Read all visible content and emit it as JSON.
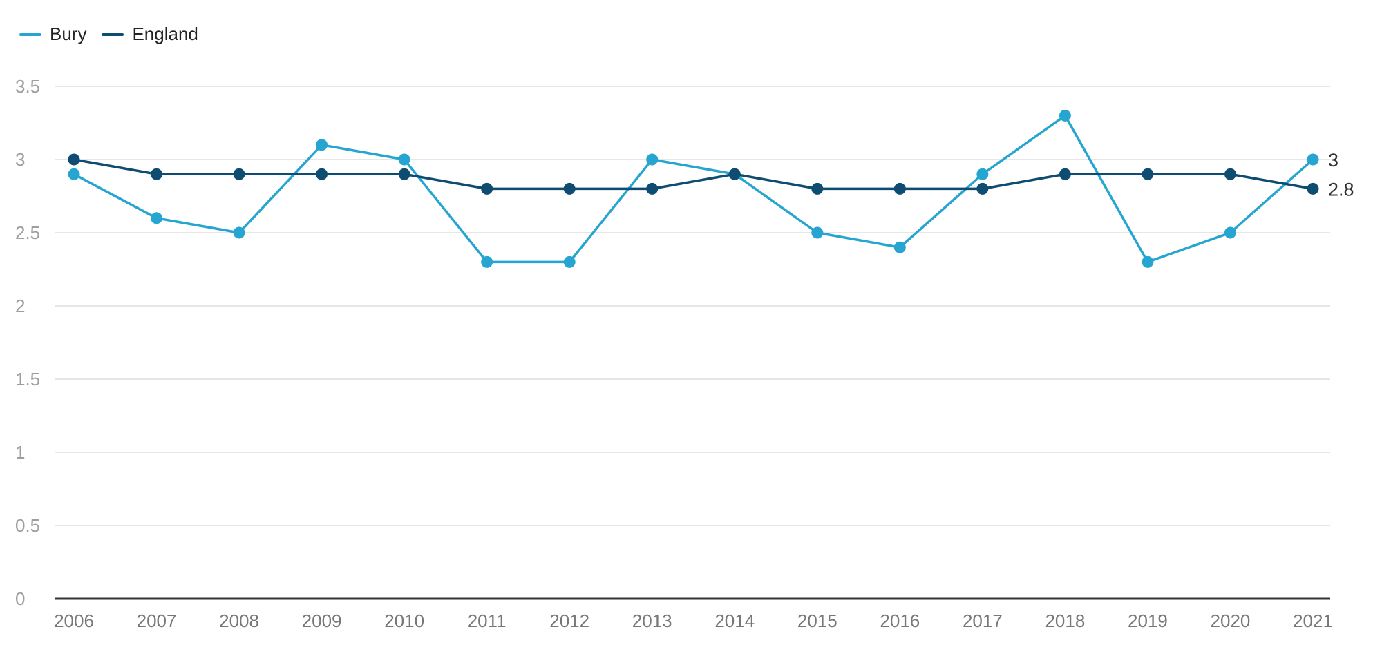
{
  "chart_data": {
    "type": "line",
    "title": "",
    "xlabel": "",
    "ylabel": "",
    "x": [
      "2006",
      "2007",
      "2008",
      "2009",
      "2010",
      "2011",
      "2012",
      "2013",
      "2014",
      "2015",
      "2016",
      "2017",
      "2018",
      "2019",
      "2020",
      "2021"
    ],
    "ylim": [
      0,
      3.5
    ],
    "yticks": [
      "0",
      "0.5",
      "1",
      "1.5",
      "2",
      "2.5",
      "3",
      "3.5"
    ],
    "grid": true,
    "legend_position": "top-left",
    "series": [
      {
        "name": "Bury",
        "color": "#27a5d1",
        "values": [
          2.9,
          2.6,
          2.5,
          3.1,
          3.0,
          2.3,
          2.3,
          3.0,
          2.9,
          2.5,
          2.4,
          2.9,
          3.3,
          2.3,
          2.5,
          3.0
        ],
        "end_label": "3"
      },
      {
        "name": "England",
        "color": "#0f4c72",
        "values": [
          3.0,
          2.9,
          2.9,
          2.9,
          2.9,
          2.8,
          2.8,
          2.8,
          2.9,
          2.8,
          2.8,
          2.8,
          2.9,
          2.9,
          2.9,
          2.8
        ],
        "end_label": "2.8"
      }
    ]
  }
}
